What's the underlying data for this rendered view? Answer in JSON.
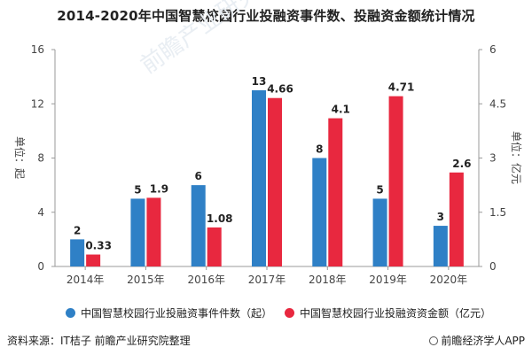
{
  "page": {
    "source": "资料来源：IT桔子 前瞻产业研究院整理",
    "brand": "前瞻经济学人APP",
    "watermark": "前瞻产业研究院"
  },
  "colors": {
    "series1": "#2f80c6",
    "series2": "#e8283f",
    "axis": "#999999",
    "grid": "#eeeeee"
  },
  "chart_data": {
    "type": "bar",
    "title": "2014-2020年中国智慧校园行业投融资事件数、投融资金额统计情况",
    "categories": [
      "2014年",
      "2015年",
      "2016年",
      "2017年",
      "2018年",
      "2019年",
      "2020年"
    ],
    "series": [
      {
        "name": "中国智慧校园行业投融资事件件数（起）",
        "values": [
          2,
          5,
          6,
          13,
          8,
          5,
          3
        ],
        "axis": "left"
      },
      {
        "name": "中国智慧校园行业投融资资金额（亿元）",
        "values": [
          0.33,
          1.9,
          1.08,
          4.66,
          4.1,
          4.71,
          2.6
        ],
        "axis": "right"
      }
    ],
    "ylabel_left": "单位：起",
    "ylabel_right": "单位：亿元",
    "ylim_left": [
      0,
      16
    ],
    "ylim_right": [
      0,
      6
    ],
    "yticks_left": [
      "0",
      "4",
      "8",
      "12",
      "16"
    ],
    "yticks_right": [
      "0",
      "1.5",
      "3",
      "4.5",
      "6"
    ],
    "data_labels_left": [
      "2",
      "5",
      "6",
      "13",
      "8",
      "5",
      "3"
    ],
    "data_labels_right": [
      "0.33",
      "1.9",
      "1.08",
      "4.66",
      "4.1",
      "4.71",
      "2.6"
    ],
    "legend": "bottom",
    "grid": false
  }
}
